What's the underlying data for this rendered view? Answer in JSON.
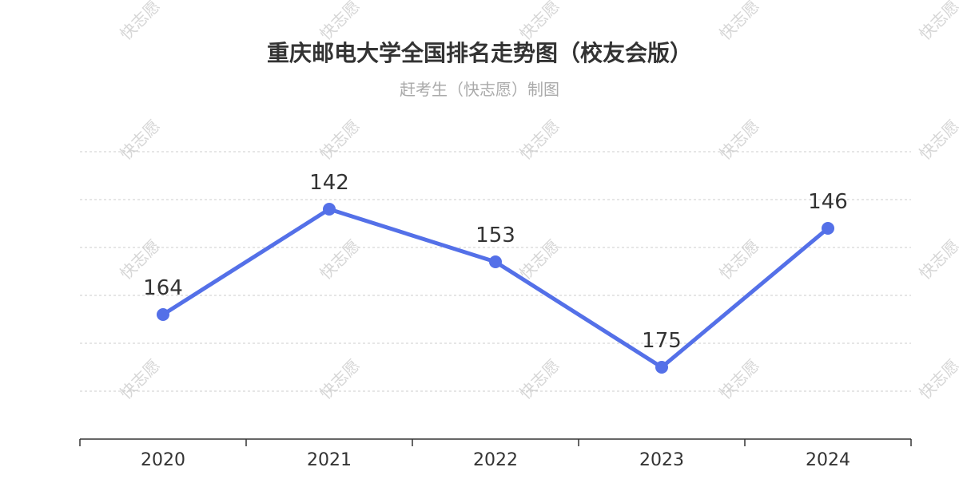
{
  "watermark_text": "快志愿",
  "chart_data": {
    "type": "line",
    "title": "重庆邮电大学全国排名走势图（校友会版）",
    "subtitle": "赶考生（快志愿）制图",
    "categories": [
      "2020",
      "2021",
      "2022",
      "2023",
      "2024"
    ],
    "series": [
      {
        "values": [
          164,
          142,
          153,
          175,
          146
        ],
        "color": "#5470e8"
      }
    ],
    "y_inverted": true,
    "ylim": [
      130,
      190
    ],
    "grid": true,
    "xlabel": "",
    "ylabel": ""
  }
}
